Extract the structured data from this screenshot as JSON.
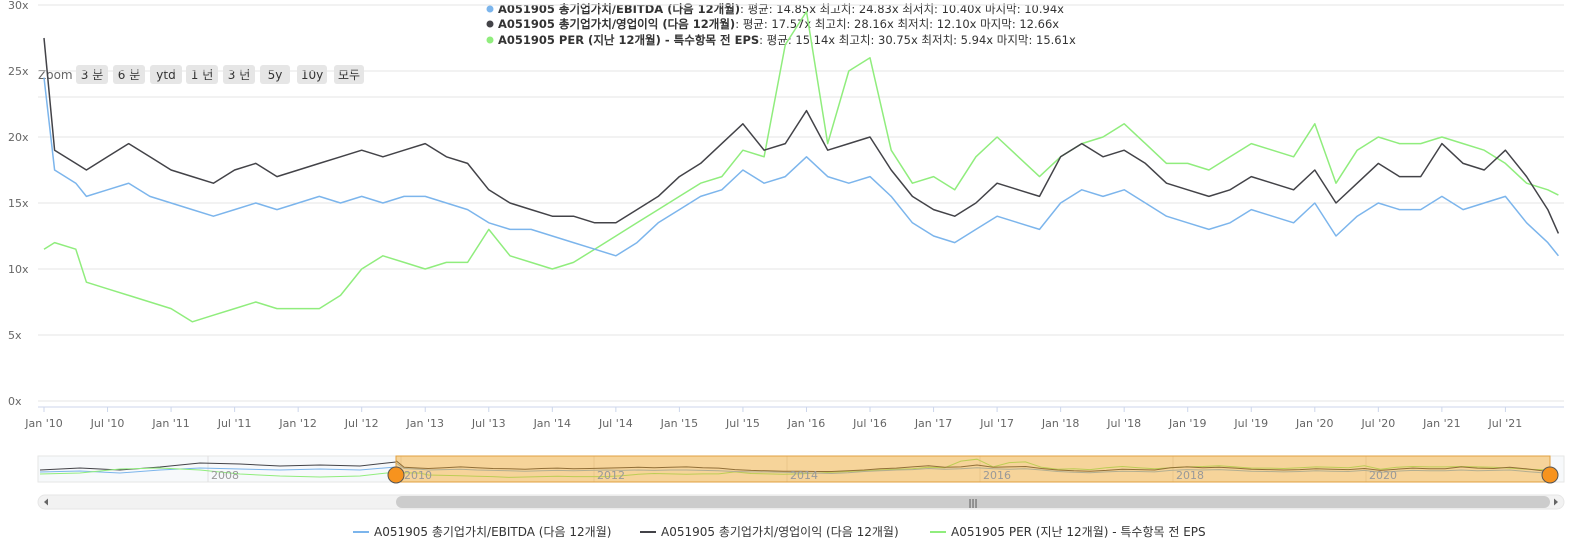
{
  "stats": [
    {
      "name": "A051905 총기업가치/EBITDA (다음 12개월)",
      "text": ": 평균: 14.85x 최고치: 24.83x 최저치: 10.40x 마지막: 10.94x",
      "color": "#7cb5ec"
    },
    {
      "name": "A051905 총기업가치/영업이익 (다음 12개월)",
      "text": ": 평균: 17.57x 최고치: 28.16x 최저치: 12.10x 마지막: 12.66x",
      "color": "#434348"
    },
    {
      "name": "A051905 PER (지난 12개월) - 특수항목 전 EPS",
      "text": ": 평균: 15.14x 최고치: 30.75x 최저치: 5.94x 마지막: 15.61x",
      "color": "#90ed7d"
    }
  ],
  "zoom": {
    "label": "Zoom",
    "buttons": [
      "3 분",
      "6 분",
      "ytd",
      "1 년",
      "3 년",
      "5y",
      "10y",
      "모두"
    ]
  },
  "navigator": {
    "years": [
      "2008",
      "2010",
      "2012",
      "2014",
      "2016",
      "2018",
      "2020"
    ],
    "scrollbar_grip": "|||"
  },
  "chart_data": {
    "type": "line",
    "title": "",
    "xlabel": "",
    "ylabel": "",
    "ylim": [
      0,
      30
    ],
    "y_ticks": [
      "0x",
      "5x",
      "10x",
      "15x",
      "20x",
      "25x",
      "30x"
    ],
    "x_ticks": [
      "Jan '10",
      "Jul '10",
      "Jan '11",
      "Jul '11",
      "Jan '12",
      "Jul '12",
      "Jan '13",
      "Jul '13",
      "Jan '14",
      "Jul '14",
      "Jan '15",
      "Jul '15",
      "Jan '16",
      "Jul '16",
      "Jan '17",
      "Jul '17",
      "Jan '18",
      "Jul '18",
      "Jan '19",
      "Jul '19",
      "Jan '20",
      "Jul '20",
      "Jan '21",
      "Jul '21"
    ],
    "grid": true,
    "legend": "bottom",
    "series": [
      {
        "name": "A051905 총기업가치/EBITDA (다음 12개월)",
        "color": "#7cb5ec",
        "x": [
          "2010-01",
          "2010-02",
          "2010-04",
          "2010-05",
          "2010-07",
          "2010-09",
          "2010-11",
          "2011-01",
          "2011-03",
          "2011-05",
          "2011-07",
          "2011-09",
          "2011-11",
          "2012-01",
          "2012-03",
          "2012-05",
          "2012-07",
          "2012-09",
          "2012-11",
          "2013-01",
          "2013-03",
          "2013-05",
          "2013-07",
          "2013-09",
          "2013-11",
          "2014-01",
          "2014-03",
          "2014-05",
          "2014-07",
          "2014-09",
          "2014-11",
          "2015-01",
          "2015-03",
          "2015-05",
          "2015-07",
          "2015-09",
          "2015-11",
          "2016-01",
          "2016-03",
          "2016-05",
          "2016-07",
          "2016-09",
          "2016-11",
          "2017-01",
          "2017-03",
          "2017-05",
          "2017-07",
          "2017-09",
          "2017-11",
          "2018-01",
          "2018-03",
          "2018-05",
          "2018-07",
          "2018-09",
          "2018-11",
          "2019-01",
          "2019-03",
          "2019-05",
          "2019-07",
          "2019-09",
          "2019-11",
          "2020-01",
          "2020-03",
          "2020-05",
          "2020-07",
          "2020-09",
          "2020-11",
          "2021-01",
          "2021-03",
          "2021-05",
          "2021-07",
          "2021-09",
          "2021-11",
          "2021-12"
        ],
        "values": [
          24.5,
          17.5,
          16.5,
          15.5,
          16.0,
          16.5,
          15.5,
          15.0,
          14.5,
          14.0,
          14.5,
          15.0,
          14.5,
          15.0,
          15.5,
          15.0,
          15.5,
          15.0,
          15.5,
          15.5,
          15.0,
          14.5,
          13.5,
          13.0,
          13.0,
          12.5,
          12.0,
          11.5,
          11.0,
          12.0,
          13.5,
          14.5,
          15.5,
          16.0,
          17.5,
          16.5,
          17.0,
          18.5,
          17.0,
          16.5,
          17.0,
          15.5,
          13.5,
          12.5,
          12.0,
          13.0,
          14.0,
          13.5,
          13.0,
          15.0,
          16.0,
          15.5,
          16.0,
          15.0,
          14.0,
          13.5,
          13.0,
          13.5,
          14.5,
          14.0,
          13.5,
          15.0,
          12.5,
          14.0,
          15.0,
          14.5,
          14.5,
          15.5,
          14.5,
          15.0,
          15.5,
          13.5,
          12.0,
          11.0
        ]
      },
      {
        "name": "A051905 총기업가치/영업이익 (다음 12개월)",
        "color": "#434348",
        "x": [
          "2010-01",
          "2010-02",
          "2010-04",
          "2010-05",
          "2010-07",
          "2010-09",
          "2010-11",
          "2011-01",
          "2011-03",
          "2011-05",
          "2011-07",
          "2011-09",
          "2011-11",
          "2012-01",
          "2012-03",
          "2012-05",
          "2012-07",
          "2012-09",
          "2012-11",
          "2013-01",
          "2013-03",
          "2013-05",
          "2013-07",
          "2013-09",
          "2013-11",
          "2014-01",
          "2014-03",
          "2014-05",
          "2014-07",
          "2014-09",
          "2014-11",
          "2015-01",
          "2015-03",
          "2015-05",
          "2015-07",
          "2015-09",
          "2015-11",
          "2016-01",
          "2016-03",
          "2016-05",
          "2016-07",
          "2016-09",
          "2016-11",
          "2017-01",
          "2017-03",
          "2017-05",
          "2017-07",
          "2017-09",
          "2017-11",
          "2018-01",
          "2018-03",
          "2018-05",
          "2018-07",
          "2018-09",
          "2018-11",
          "2019-01",
          "2019-03",
          "2019-05",
          "2019-07",
          "2019-09",
          "2019-11",
          "2020-01",
          "2020-03",
          "2020-05",
          "2020-07",
          "2020-09",
          "2020-11",
          "2021-01",
          "2021-03",
          "2021-05",
          "2021-07",
          "2021-09",
          "2021-11",
          "2021-12"
        ],
        "values": [
          27.5,
          19.0,
          18.0,
          17.5,
          18.5,
          19.5,
          18.5,
          17.5,
          17.0,
          16.5,
          17.5,
          18.0,
          17.0,
          17.5,
          18.0,
          18.5,
          19.0,
          18.5,
          19.0,
          19.5,
          18.5,
          18.0,
          16.0,
          15.0,
          14.5,
          14.0,
          14.0,
          13.5,
          13.5,
          14.5,
          15.5,
          17.0,
          18.0,
          19.5,
          21.0,
          19.0,
          19.5,
          22.0,
          19.0,
          19.5,
          20.0,
          17.5,
          15.5,
          14.5,
          14.0,
          15.0,
          16.5,
          16.0,
          15.5,
          18.5,
          19.5,
          18.5,
          19.0,
          18.0,
          16.5,
          16.0,
          15.5,
          16.0,
          17.0,
          16.5,
          16.0,
          17.5,
          15.0,
          16.5,
          18.0,
          17.0,
          17.0,
          19.5,
          18.0,
          17.5,
          19.0,
          17.0,
          14.5,
          12.7
        ]
      },
      {
        "name": "A051905 PER (지난 12개월) - 특수항목 전 EPS",
        "color": "#90ed7d",
        "x": [
          "2010-01",
          "2010-02",
          "2010-04",
          "2010-05",
          "2010-07",
          "2010-09",
          "2010-11",
          "2011-01",
          "2011-03",
          "2011-05",
          "2011-07",
          "2011-09",
          "2011-11",
          "2012-01",
          "2012-03",
          "2012-05",
          "2012-07",
          "2012-09",
          "2012-11",
          "2013-01",
          "2013-03",
          "2013-05",
          "2013-07",
          "2013-09",
          "2013-11",
          "2014-01",
          "2014-03",
          "2014-05",
          "2014-07",
          "2014-09",
          "2014-11",
          "2015-01",
          "2015-03",
          "2015-05",
          "2015-07",
          "2015-09",
          "2015-11",
          "2016-01",
          "2016-03",
          "2016-05",
          "2016-07",
          "2016-09",
          "2016-11",
          "2017-01",
          "2017-03",
          "2017-05",
          "2017-07",
          "2017-09",
          "2017-11",
          "2018-01",
          "2018-03",
          "2018-05",
          "2018-07",
          "2018-09",
          "2018-11",
          "2019-01",
          "2019-03",
          "2019-05",
          "2019-07",
          "2019-09",
          "2019-11",
          "2020-01",
          "2020-03",
          "2020-05",
          "2020-07",
          "2020-09",
          "2020-11",
          "2021-01",
          "2021-03",
          "2021-05",
          "2021-07",
          "2021-09",
          "2021-11",
          "2021-12"
        ],
        "values": [
          11.5,
          12.0,
          11.5,
          9.0,
          8.5,
          8.0,
          7.5,
          7.0,
          6.0,
          6.5,
          7.0,
          7.5,
          7.0,
          7.0,
          7.0,
          8.0,
          10.0,
          11.0,
          10.5,
          10.0,
          10.5,
          10.5,
          13.0,
          11.0,
          10.5,
          10.0,
          10.5,
          11.5,
          12.5,
          13.5,
          14.5,
          15.5,
          16.5,
          17.0,
          19.0,
          18.5,
          27.0,
          29.5,
          19.5,
          25.0,
          26.0,
          19.0,
          16.5,
          17.0,
          16.0,
          18.5,
          20.0,
          18.5,
          17.0,
          18.5,
          19.5,
          20.0,
          21.0,
          19.5,
          18.0,
          18.0,
          17.5,
          18.5,
          19.5,
          19.0,
          18.5,
          21.0,
          16.5,
          19.0,
          20.0,
          19.5,
          19.5,
          20.0,
          19.5,
          19.0,
          18.0,
          16.5,
          16.0,
          15.6
        ]
      }
    ]
  }
}
